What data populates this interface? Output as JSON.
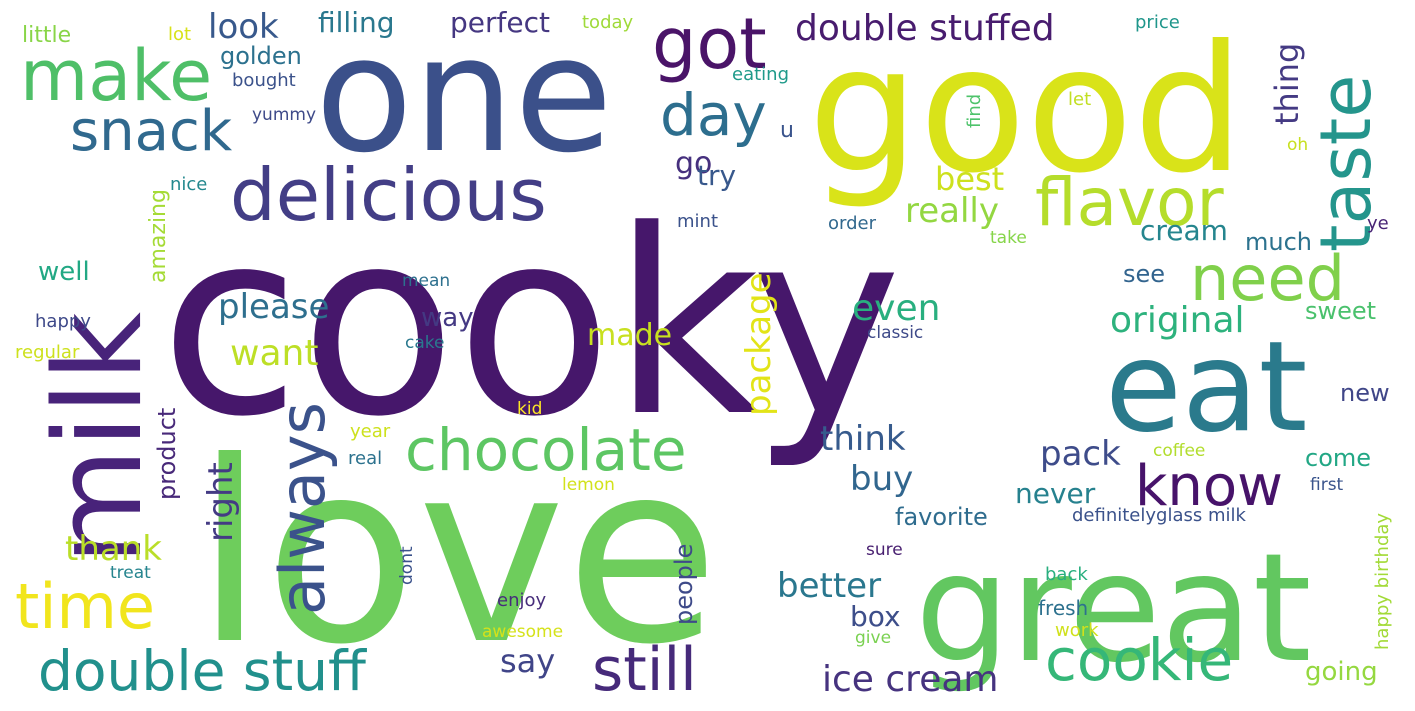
{
  "wordcloud": {
    "palette": [
      "#440154",
      "#3b528b",
      "#21918c",
      "#5ec962",
      "#fde725"
    ],
    "words": [
      {
        "text": "cooky",
        "color": "#46176b"
      },
      {
        "text": "love",
        "color": "#6ecd5c"
      },
      {
        "text": "one",
        "color": "#3b508a"
      },
      {
        "text": "good",
        "color": "#d9e319"
      },
      {
        "text": "great",
        "color": "#62c760"
      },
      {
        "text": "eat",
        "color": "#2a7a8c"
      },
      {
        "text": "milk",
        "color": "#48237a"
      },
      {
        "text": "delicious",
        "color": "#433e86"
      },
      {
        "text": "make",
        "color": "#4fbf68"
      },
      {
        "text": "got",
        "color": "#4a1468"
      },
      {
        "text": "taste",
        "color": "#24958c"
      },
      {
        "text": "flavor",
        "color": "#b5dd2b"
      },
      {
        "text": "snack",
        "color": "#30698e"
      },
      {
        "text": "day",
        "color": "#2d6e8e"
      },
      {
        "text": "need",
        "color": "#80d04b"
      },
      {
        "text": "chocolate",
        "color": "#5dc663"
      },
      {
        "text": "know",
        "color": "#47136a"
      },
      {
        "text": "double stuff",
        "color": "#21908c"
      },
      {
        "text": "still",
        "color": "#462a7a"
      },
      {
        "text": "cookie",
        "color": "#35b778"
      },
      {
        "text": "time",
        "color": "#f1e51d"
      },
      {
        "text": "always",
        "color": "#3b528b"
      },
      {
        "text": "double stuffed",
        "color": "#481c6e"
      },
      {
        "text": "filling",
        "color": "#2a788e"
      },
      {
        "text": "perfect",
        "color": "#453781"
      },
      {
        "text": "look",
        "color": "#38598c"
      },
      {
        "text": "golden",
        "color": "#2c718e"
      },
      {
        "text": "little",
        "color": "#89d548"
      },
      {
        "text": "lot",
        "color": "#d8e219"
      },
      {
        "text": "today",
        "color": "#9fda3a"
      },
      {
        "text": "price",
        "color": "#1f968b"
      },
      {
        "text": "bought",
        "color": "#3b528b"
      },
      {
        "text": "yummy",
        "color": "#3e4a89"
      },
      {
        "text": "eating",
        "color": "#1f9a8a"
      },
      {
        "text": "let",
        "color": "#c2df23"
      },
      {
        "text": "find",
        "color": "#4ec36b"
      },
      {
        "text": "oh",
        "color": "#c8e020"
      },
      {
        "text": "u",
        "color": "#3a548c"
      },
      {
        "text": "go",
        "color": "#46307e"
      },
      {
        "text": "try",
        "color": "#38588c"
      },
      {
        "text": "best",
        "color": "#cde11d"
      },
      {
        "text": "really",
        "color": "#93d741"
      },
      {
        "text": "thing",
        "color": "#443a83"
      },
      {
        "text": "nice",
        "color": "#23888e"
      },
      {
        "text": "amazing",
        "color": "#a5db36"
      },
      {
        "text": "mint",
        "color": "#3b528b"
      },
      {
        "text": "order",
        "color": "#31688e"
      },
      {
        "text": "take",
        "color": "#86d549"
      },
      {
        "text": "ye",
        "color": "#482475"
      },
      {
        "text": "cream",
        "color": "#25858e"
      },
      {
        "text": "much",
        "color": "#2c728e"
      },
      {
        "text": "well",
        "color": "#22a884"
      },
      {
        "text": "please",
        "color": "#2e6f8e"
      },
      {
        "text": "want",
        "color": "#bddf26"
      },
      {
        "text": "package",
        "color": "#e2e418"
      },
      {
        "text": "even",
        "color": "#29af7f"
      },
      {
        "text": "original",
        "color": "#2db27d"
      },
      {
        "text": "see",
        "color": "#32648e"
      },
      {
        "text": "sweet",
        "color": "#4ac16d"
      },
      {
        "text": "mean",
        "color": "#2d708e"
      },
      {
        "text": "way",
        "color": "#443983"
      },
      {
        "text": "happy",
        "color": "#3e4989"
      },
      {
        "text": "classic",
        "color": "#3e4a89"
      },
      {
        "text": "regular",
        "color": "#cde11d"
      },
      {
        "text": "cake",
        "color": "#2a788e"
      },
      {
        "text": "made",
        "color": "#c8e020"
      },
      {
        "text": "new",
        "color": "#404688"
      },
      {
        "text": "product",
        "color": "#482979"
      },
      {
        "text": "right",
        "color": "#443b84"
      },
      {
        "text": "kid",
        "color": "#fde725"
      },
      {
        "text": "think",
        "color": "#375b8d"
      },
      {
        "text": "buy",
        "color": "#31668e"
      },
      {
        "text": "pack",
        "color": "#3e4c8a"
      },
      {
        "text": "come",
        "color": "#22a785"
      },
      {
        "text": "year",
        "color": "#cde11d"
      },
      {
        "text": "real",
        "color": "#2c728e"
      },
      {
        "text": "coffee",
        "color": "#b2dd2d"
      },
      {
        "text": "lemon",
        "color": "#d2e21b"
      },
      {
        "text": "never",
        "color": "#26818e"
      },
      {
        "text": "first",
        "color": "#3a548c"
      },
      {
        "text": "thank",
        "color": "#bade28"
      },
      {
        "text": "favorite",
        "color": "#2f6c8e"
      },
      {
        "text": "definitelyglass milk",
        "color": "#3b528b"
      },
      {
        "text": "happy birthday",
        "color": "#a2da37"
      },
      {
        "text": "treat",
        "color": "#25848e"
      },
      {
        "text": "dont",
        "color": "#3b528b"
      },
      {
        "text": "people",
        "color": "#3e4a89"
      },
      {
        "text": "sure",
        "color": "#481f70"
      },
      {
        "text": "better",
        "color": "#2a778e"
      },
      {
        "text": "back",
        "color": "#29af7f"
      },
      {
        "text": "enjoy",
        "color": "#472d7b"
      },
      {
        "text": "box",
        "color": "#3d4e8a"
      },
      {
        "text": "fresh",
        "color": "#2d718e"
      },
      {
        "text": "awesome",
        "color": "#d5e21a"
      },
      {
        "text": "work",
        "color": "#d0e11c"
      },
      {
        "text": "give",
        "color": "#7ad151"
      },
      {
        "text": "say",
        "color": "#404588"
      },
      {
        "text": "ice cream",
        "color": "#46337f"
      },
      {
        "text": "going",
        "color": "#95d840"
      }
    ]
  }
}
